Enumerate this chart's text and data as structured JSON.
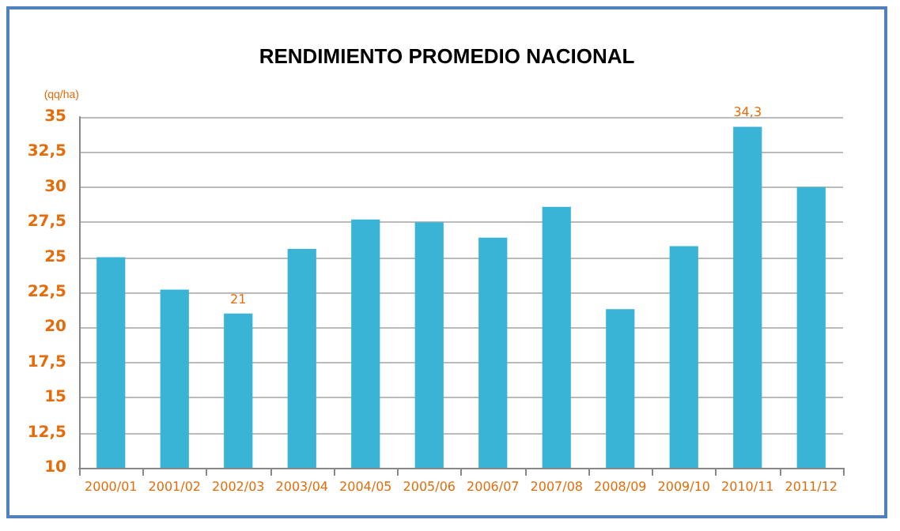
{
  "chart_data": {
    "type": "bar",
    "title": "RENDIMIENTO PROMEDIO NACIONAL",
    "ylabel": "(qq/ha)",
    "categories": [
      "2000/01",
      "2001/02",
      "2002/03",
      "2003/04",
      "2004/05",
      "2005/06",
      "2006/07",
      "2007/08",
      "2008/09",
      "2009/10",
      "2010/11",
      "2011/12"
    ],
    "values": [
      25,
      22.7,
      21,
      25.6,
      27.7,
      27.5,
      26.4,
      28.6,
      21.3,
      25.8,
      34.3,
      30
    ],
    "value_labels": [
      null,
      null,
      "21",
      null,
      null,
      null,
      null,
      null,
      null,
      null,
      "34,3",
      null
    ],
    "color": "#3ab4d6",
    "ylim": [
      10,
      35
    ],
    "yticks": [
      {
        "value": 10,
        "label": "10"
      },
      {
        "value": 12.5,
        "label": "12,5"
      },
      {
        "value": 15,
        "label": "15"
      },
      {
        "value": 17.5,
        "label": "17,5"
      },
      {
        "value": 20,
        "label": "20"
      },
      {
        "value": 22.5,
        "label": "22,5"
      },
      {
        "value": 25,
        "label": "25"
      },
      {
        "value": 27.5,
        "label": "27,5"
      },
      {
        "value": 30,
        "label": "30"
      },
      {
        "value": 32.5,
        "label": "32,5"
      },
      {
        "value": 35,
        "label": "35"
      }
    ],
    "grid": "y"
  }
}
